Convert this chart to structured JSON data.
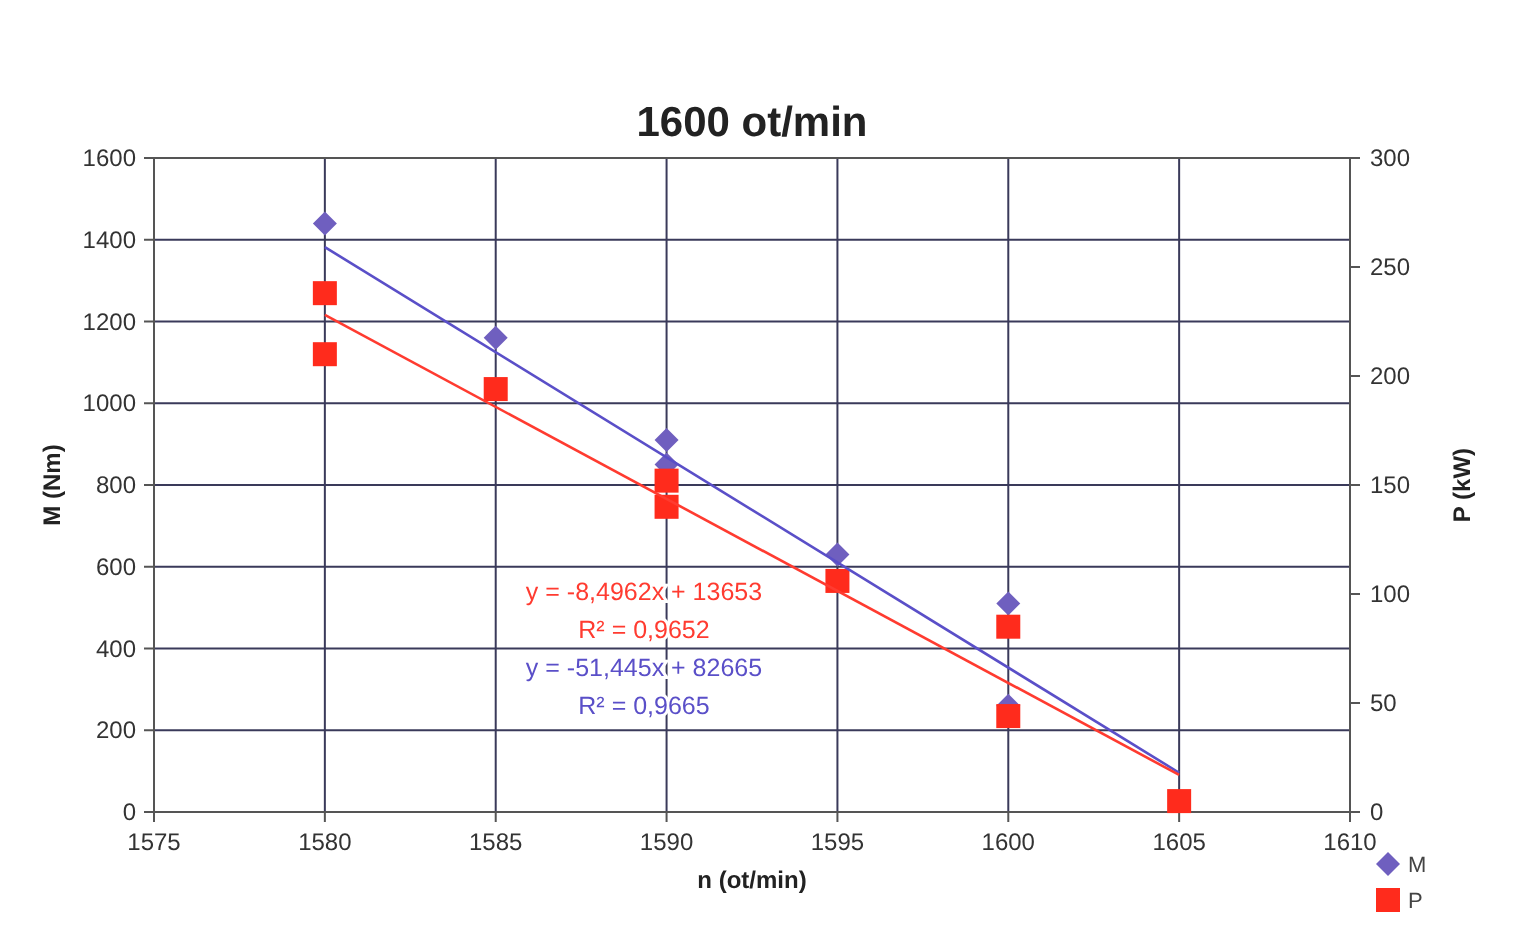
{
  "chart_data": {
    "type": "scatter",
    "title": "1600 ot/min",
    "xlabel": "n (ot/min)",
    "ylabel": "M (Nm)",
    "y2label": "P (kW)",
    "xlim": [
      1575,
      1610
    ],
    "xticks": [
      1575,
      1580,
      1585,
      1590,
      1595,
      1600,
      1605,
      1610
    ],
    "ylim": [
      0,
      1600
    ],
    "yticks": [
      0,
      200,
      400,
      600,
      800,
      1000,
      1200,
      1400,
      1600
    ],
    "y2lim": [
      0,
      300
    ],
    "y2ticks": [
      0,
      50,
      100,
      150,
      200,
      250,
      300
    ],
    "grid": true,
    "legend": "right",
    "series": [
      {
        "name": "M",
        "marker": "diamond",
        "color": "#6f5fbf",
        "x": [
          1580,
          1585,
          1590,
          1590,
          1595,
          1600,
          1600
        ],
        "values": [
          1440,
          1160,
          910,
          850,
          630,
          510,
          260
        ]
      },
      {
        "name": "P",
        "marker": "square",
        "color": "#ff2b1c",
        "axis": "y2",
        "x": [
          1580,
          1580,
          1585,
          1590,
          1590,
          1595,
          1600,
          1600,
          1605
        ],
        "values": [
          238,
          210,
          194,
          152,
          140,
          106,
          85,
          44,
          5
        ]
      },
      {
        "type": "line",
        "marker": "none",
        "color": "#5a4fc8",
        "x": [
          1580,
          1605
        ],
        "values": [
          1382,
          96
        ]
      },
      {
        "type": "line",
        "marker": "none",
        "color": "#ff3b30",
        "axis": "y2",
        "x": [
          1580,
          1605
        ],
        "values": [
          228,
          17
        ]
      }
    ],
    "annotations": [
      "y = -8,4962x + 13653",
      "R² = 0,9652",
      "y = -51,445x + 82665",
      "R² = 0,9665"
    ]
  }
}
